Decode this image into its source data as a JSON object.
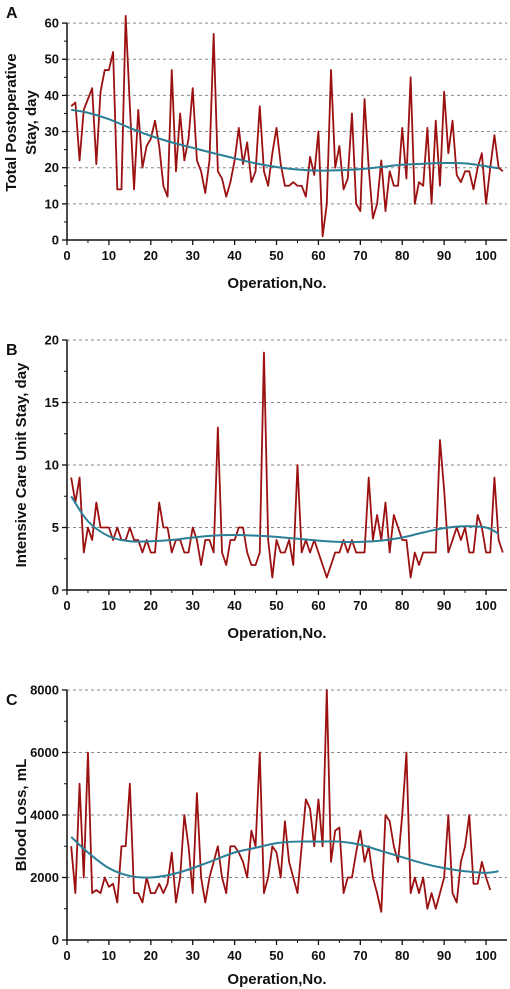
{
  "colors": {
    "raw": "#9b1010",
    "trend": "#2a7f96",
    "grid": "#8a8a8a",
    "axis": "#111111"
  },
  "chart_data": [
    {
      "type": "line",
      "panel": "A",
      "xlabel": "Operation,No.",
      "ylabel": "Total Postoperative Stay, day",
      "ylabel_lines": [
        "Total Postoperative",
        "Stay, day"
      ],
      "xlim": [
        0,
        105
      ],
      "ylim": [
        0,
        65
      ],
      "xticks": [
        0,
        10,
        20,
        30,
        40,
        50,
        60,
        70,
        80,
        90,
        100
      ],
      "yticks": [
        0,
        10,
        20,
        30,
        40,
        50,
        60
      ],
      "gridlines_y": [
        10,
        20,
        30,
        40,
        50,
        60
      ],
      "series": [
        {
          "role": "raw",
          "values": [
            37,
            38,
            22,
            36,
            39,
            42,
            21,
            41,
            47,
            47,
            52,
            14,
            14,
            62,
            37,
            14,
            36,
            20,
            26,
            28,
            33,
            26,
            15,
            12,
            47,
            19,
            35,
            22,
            28,
            42,
            22,
            19,
            13,
            22,
            57,
            19,
            17,
            12,
            16,
            22,
            31,
            21,
            27,
            16,
            19,
            37,
            19,
            15,
            24,
            31,
            21,
            15,
            15,
            16,
            15,
            15,
            12,
            23,
            18,
            30,
            1,
            10,
            47,
            20,
            26,
            14,
            17,
            35,
            10,
            8,
            39,
            20,
            6,
            10,
            22,
            8,
            19,
            15,
            15,
            31,
            17,
            45,
            10,
            16,
            15,
            31,
            10,
            33,
            15,
            41,
            24,
            33,
            18,
            16,
            19,
            19,
            14,
            20,
            24,
            10,
            20,
            29,
            20,
            19
          ]
        },
        {
          "role": "trend",
          "x": [
            1,
            5,
            10,
            15,
            20,
            25,
            30,
            35,
            40,
            45,
            50,
            55,
            60,
            65,
            70,
            75,
            80,
            85,
            90,
            95,
            100,
            103
          ],
          "values": [
            36.0,
            35.2,
            33.4,
            31.0,
            28.8,
            27.0,
            25.5,
            24.0,
            22.6,
            21.2,
            20.2,
            19.5,
            19.2,
            19.3,
            19.6,
            20.2,
            20.8,
            21.1,
            21.3,
            21.2,
            20.4,
            19.8
          ]
        }
      ]
    },
    {
      "type": "line",
      "panel": "B",
      "xlabel": "Operation,No.",
      "ylabel": "Intensive Care Unit Stay, day",
      "ylabel_lines": [
        "Intensive Care Unit Stay, day"
      ],
      "xlim": [
        0,
        105
      ],
      "ylim": [
        0,
        20
      ],
      "xticks": [
        0,
        10,
        20,
        30,
        40,
        50,
        60,
        70,
        80,
        90,
        100
      ],
      "yticks": [
        0,
        5,
        10,
        15,
        20
      ],
      "gridlines_y": [
        5,
        10,
        15,
        20
      ],
      "series": [
        {
          "role": "raw",
          "values": [
            9,
            7,
            9,
            3,
            5,
            4,
            7,
            5,
            5,
            5,
            4,
            5,
            4,
            4,
            5,
            4,
            4,
            3,
            4,
            3,
            3,
            7,
            5,
            5,
            3,
            4,
            4,
            3,
            3,
            5,
            4,
            2,
            4,
            4,
            3,
            13,
            3,
            2,
            4,
            4,
            5,
            5,
            3,
            2,
            2,
            3,
            19,
            4,
            1,
            4,
            3,
            3,
            4,
            2,
            10,
            3,
            4,
            3,
            4,
            3,
            2,
            1,
            2,
            3,
            3,
            4,
            3,
            4,
            3,
            3,
            3,
            9,
            4,
            6,
            4,
            7,
            3,
            6,
            5,
            4,
            4,
            1,
            3,
            2,
            3,
            3,
            3,
            3,
            12,
            8,
            3,
            4,
            5,
            4,
            5,
            3,
            3,
            6,
            5,
            3,
            3,
            9,
            4,
            3
          ]
        },
        {
          "role": "trend",
          "x": [
            1,
            5,
            10,
            15,
            20,
            25,
            30,
            35,
            40,
            45,
            50,
            55,
            60,
            65,
            70,
            75,
            80,
            85,
            90,
            95,
            100,
            103
          ],
          "values": [
            7.5,
            5.5,
            4.3,
            3.9,
            3.9,
            4.0,
            4.2,
            4.35,
            4.4,
            4.35,
            4.25,
            4.1,
            3.95,
            3.85,
            3.85,
            3.95,
            4.2,
            4.6,
            4.95,
            5.1,
            5.0,
            4.5
          ]
        }
      ]
    },
    {
      "type": "line",
      "panel": "C",
      "xlabel": "Operation,No.",
      "ylabel": "Blood Loss, mL",
      "ylabel_lines": [
        "Blood Loss, mL"
      ],
      "xlim": [
        0,
        105
      ],
      "ylim": [
        0,
        8000
      ],
      "xticks": [
        0,
        10,
        20,
        30,
        40,
        50,
        60,
        70,
        80,
        90,
        100
      ],
      "yticks": [
        0,
        2000,
        4000,
        6000,
        8000
      ],
      "gridlines_y": [
        2000,
        4000,
        6000,
        8000
      ],
      "series": [
        {
          "role": "raw",
          "values": [
            3000,
            1500,
            5000,
            2000,
            6000,
            1500,
            1600,
            1500,
            2000,
            1700,
            1800,
            1200,
            3000,
            3000,
            5000,
            1500,
            1500,
            1200,
            2000,
            1500,
            1500,
            1800,
            1500,
            1800,
            2800,
            1200,
            2000,
            4000,
            3000,
            1500,
            4700,
            2000,
            1200,
            2000,
            2500,
            3000,
            2000,
            1500,
            3000,
            3000,
            2800,
            2500,
            2000,
            3500,
            3000,
            6000,
            1500,
            2000,
            3000,
            2800,
            2000,
            3800,
            2500,
            2000,
            1500,
            3000,
            4500,
            4200,
            3000,
            4500,
            3000,
            8000,
            2500,
            3500,
            3600,
            1500,
            2000,
            2000,
            2800,
            3500,
            2500,
            3000,
            2000,
            1500,
            900,
            4000,
            3800,
            3000,
            2500,
            4000,
            6000,
            1500,
            2000,
            1500,
            2000,
            1000,
            1500,
            1000,
            1500,
            2000,
            4000,
            1500,
            1200,
            2500,
            3000,
            4000,
            1800,
            1800,
            2500,
            2000,
            1600
          ]
        },
        {
          "role": "trend",
          "x": [
            1,
            5,
            10,
            15,
            20,
            25,
            30,
            35,
            40,
            45,
            50,
            55,
            60,
            65,
            70,
            75,
            80,
            85,
            90,
            95,
            100,
            103
          ],
          "values": [
            3300,
            2800,
            2300,
            2050,
            2000,
            2100,
            2300,
            2550,
            2800,
            2950,
            3100,
            3150,
            3150,
            3150,
            3050,
            2850,
            2650,
            2450,
            2300,
            2200,
            2150,
            2200
          ]
        }
      ]
    }
  ]
}
